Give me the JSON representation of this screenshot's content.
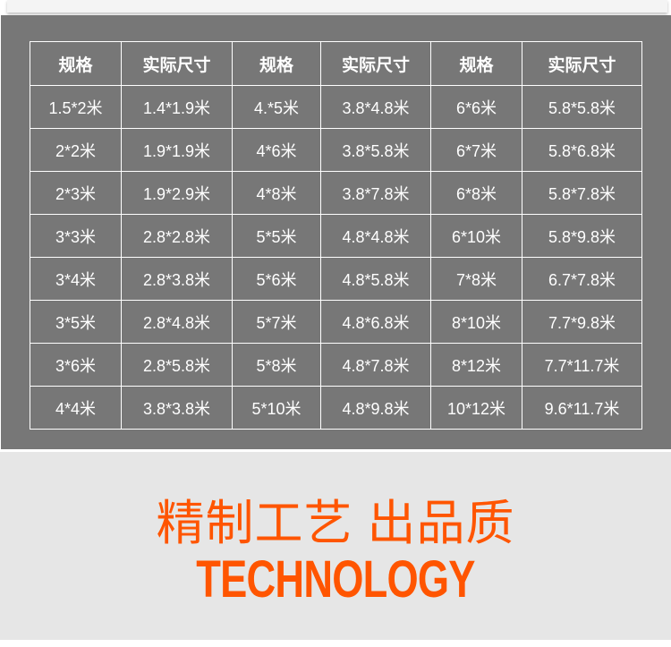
{
  "table": {
    "headers": [
      "规格",
      "实际尺寸",
      "规格",
      "实际尺寸",
      "规格",
      "实际尺寸"
    ],
    "rows": [
      [
        "1.5*2米",
        "1.4*1.9米",
        "4.*5米",
        "3.8*4.8米",
        "6*6米",
        "5.8*5.8米"
      ],
      [
        "2*2米",
        "1.9*1.9米",
        "4*6米",
        "3.8*5.8米",
        "6*7米",
        "5.8*6.8米"
      ],
      [
        "2*3米",
        "1.9*2.9米",
        "4*8米",
        "3.8*7.8米",
        "6*8米",
        "5.8*7.8米"
      ],
      [
        "3*3米",
        "2.8*2.8米",
        "5*5米",
        "4.8*4.8米",
        "6*10米",
        "5.8*9.8米"
      ],
      [
        "3*4米",
        "2.8*3.8米",
        "5*6米",
        "4.8*5.8米",
        "7*8米",
        "6.7*7.8米"
      ],
      [
        "3*5米",
        "2.8*4.8米",
        "5*7米",
        "4.8*6.8米",
        "8*10米",
        "7.7*9.8米"
      ],
      [
        "3*6米",
        "2.8*5.8米",
        "5*8米",
        "4.8*7.8米",
        "8*12米",
        "7.7*11.7米"
      ],
      [
        "4*4米",
        "3.8*3.8米",
        "5*10米",
        "4.8*9.8米",
        "10*12米",
        "9.6*11.7米"
      ]
    ]
  },
  "banner": {
    "title_cn": "精制工艺 出品质",
    "title_en": "TECHNOLOGY"
  },
  "colors": {
    "panel": "#777777",
    "accent": "#ff5500",
    "banner_bg": "#e6e6e6"
  }
}
